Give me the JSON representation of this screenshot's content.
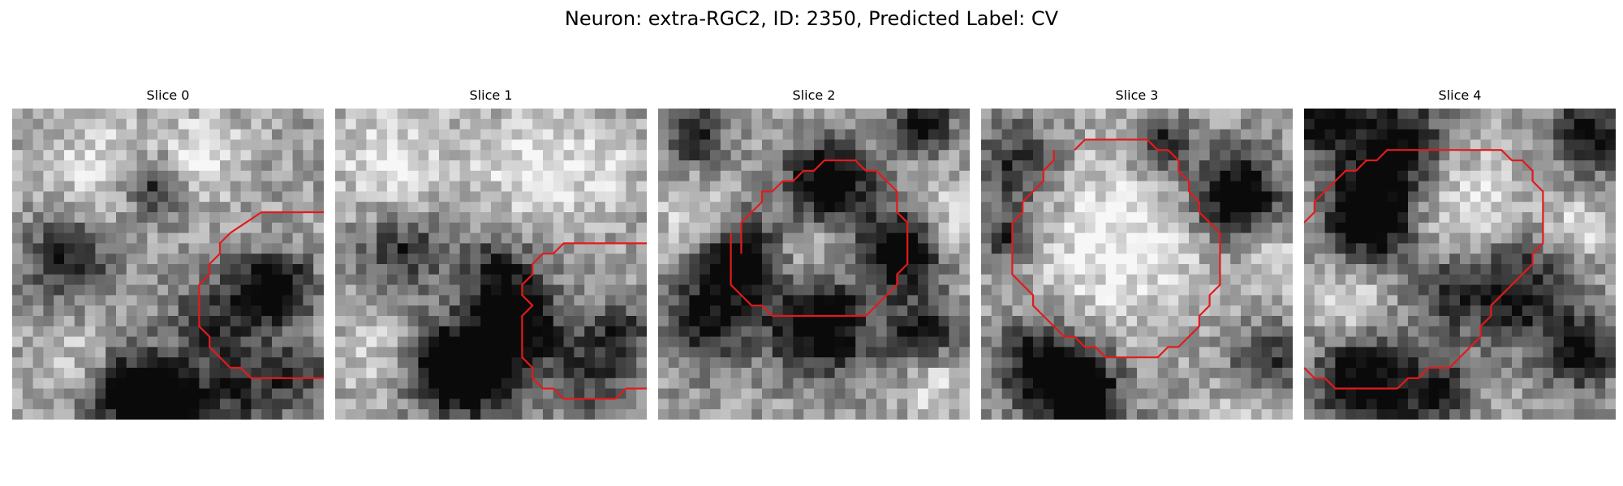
{
  "figure": {
    "title": "Neuron: extra-RGC2, ID: 2350, Predicted Label: CV"
  },
  "panels": [
    {
      "title": "Slice 0",
      "contour": [
        [
          30,
          10
        ],
        [
          24,
          10
        ],
        [
          21,
          12
        ],
        [
          20,
          13
        ],
        [
          20,
          14
        ],
        [
          19,
          15
        ],
        [
          19,
          16
        ],
        [
          18,
          17
        ],
        [
          18,
          21
        ],
        [
          19,
          22
        ],
        [
          19,
          23
        ],
        [
          21,
          25
        ],
        [
          22,
          25
        ],
        [
          23,
          26
        ],
        [
          30,
          26
        ]
      ],
      "dark_blobs": [
        [
          25,
          17,
          2.5,
          0.85
        ],
        [
          20,
          20,
          3.5,
          0.55
        ],
        [
          11,
          27,
          3,
          0.8
        ],
        [
          5,
          14,
          3,
          0.5
        ],
        [
          13,
          7,
          2,
          0.55
        ],
        [
          27,
          25,
          2.5,
          0.5
        ],
        [
          21,
          27,
          3,
          0.45
        ],
        [
          15,
          28,
          2,
          0.55
        ]
      ],
      "light_blobs": [
        [
          24,
          21,
          4.5,
          0.25
        ],
        [
          8,
          5,
          4,
          0.25
        ],
        [
          18,
          4,
          3,
          0.25
        ],
        [
          6,
          24,
          3,
          0.2
        ]
      ]
    },
    {
      "title": "Slice 1",
      "contour": [
        [
          30,
          13
        ],
        [
          22,
          13
        ],
        [
          21,
          14
        ],
        [
          20,
          14
        ],
        [
          19,
          15
        ],
        [
          19,
          16
        ],
        [
          18,
          17
        ],
        [
          18,
          18
        ],
        [
          19,
          19
        ],
        [
          18,
          20
        ],
        [
          18,
          24
        ],
        [
          19,
          25
        ],
        [
          19,
          26
        ],
        [
          20,
          27
        ],
        [
          21,
          27
        ],
        [
          22,
          28
        ],
        [
          27,
          28
        ],
        [
          28,
          27
        ],
        [
          30,
          27
        ]
      ],
      "dark_blobs": [
        [
          17,
          20,
          3,
          0.7
        ],
        [
          13,
          25,
          3,
          0.75
        ],
        [
          6,
          13,
          3,
          0.45
        ],
        [
          15,
          15,
          2.5,
          0.4
        ],
        [
          24,
          25,
          3,
          0.4
        ],
        [
          9,
          24,
          3,
          0.45
        ],
        [
          27,
          21,
          2,
          0.4
        ]
      ],
      "light_blobs": [
        [
          5,
          5,
          4,
          0.3
        ],
        [
          18,
          5,
          4,
          0.25
        ],
        [
          4,
          23,
          3,
          0.25
        ],
        [
          25,
          5,
          3,
          0.2
        ]
      ]
    },
    {
      "title": "Slice 2",
      "contour": [
        [
          8,
          14
        ],
        [
          8,
          11
        ],
        [
          9,
          10
        ],
        [
          10,
          9
        ],
        [
          10,
          8
        ],
        [
          11,
          8
        ],
        [
          12,
          7
        ],
        [
          13,
          7
        ],
        [
          14,
          6
        ],
        [
          15,
          6
        ],
        [
          16,
          5
        ],
        [
          19,
          5
        ],
        [
          20,
          6
        ],
        [
          21,
          6
        ],
        [
          22,
          7
        ],
        [
          23,
          8
        ],
        [
          23,
          10
        ],
        [
          24,
          11
        ],
        [
          24,
          15
        ],
        [
          23,
          16
        ],
        [
          23,
          17
        ],
        [
          22,
          18
        ],
        [
          21,
          19
        ],
        [
          20,
          20
        ],
        [
          11,
          20
        ],
        [
          10,
          19
        ],
        [
          9,
          19
        ],
        [
          8,
          18
        ],
        [
          7,
          17
        ],
        [
          7,
          12
        ]
      ],
      "dark_blobs": [
        [
          16,
          7,
          3,
          0.8
        ],
        [
          8,
          14,
          3,
          0.85
        ],
        [
          23,
          13,
          2.5,
          0.85
        ],
        [
          15,
          20,
          3.5,
          0.8
        ],
        [
          4,
          20,
          3,
          0.55
        ],
        [
          25,
          1,
          2,
          0.6
        ],
        [
          3,
          2,
          2,
          0.55
        ],
        [
          25,
          21,
          2.5,
          0.5
        ]
      ],
      "light_blobs": [
        [
          13,
          14,
          3.5,
          0.4
        ],
        [
          3,
          10,
          2.5,
          0.25
        ],
        [
          27,
          10,
          2.5,
          0.25
        ],
        [
          26,
          26,
          2,
          0.3
        ]
      ]
    },
    {
      "title": "Slice 3",
      "contour": [
        [
          9,
          4
        ],
        [
          10,
          3
        ],
        [
          16,
          3
        ],
        [
          17,
          4
        ],
        [
          18,
          4
        ],
        [
          19,
          5
        ],
        [
          19,
          6
        ],
        [
          20,
          7
        ],
        [
          20,
          8
        ],
        [
          21,
          9
        ],
        [
          21,
          10
        ],
        [
          22,
          11
        ],
        [
          23,
          12
        ],
        [
          23,
          17
        ],
        [
          22,
          18
        ],
        [
          22,
          19
        ],
        [
          21,
          20
        ],
        [
          21,
          21
        ],
        [
          20,
          22
        ],
        [
          19,
          23
        ],
        [
          18,
          23
        ],
        [
          17,
          24
        ],
        [
          12,
          24
        ],
        [
          11,
          23
        ],
        [
          10,
          23
        ],
        [
          9,
          22
        ],
        [
          8,
          22
        ],
        [
          7,
          21
        ],
        [
          6,
          20
        ],
        [
          5,
          19
        ],
        [
          5,
          18
        ],
        [
          4,
          17
        ],
        [
          3,
          16
        ],
        [
          3,
          11
        ],
        [
          4,
          10
        ],
        [
          4,
          9
        ],
        [
          5,
          8
        ],
        [
          6,
          7
        ],
        [
          6,
          6
        ],
        [
          7,
          5
        ],
        [
          7,
          4
        ]
      ],
      "dark_blobs": [
        [
          24,
          8,
          3,
          0.8
        ],
        [
          5,
          24,
          3,
          0.55
        ],
        [
          9,
          27,
          3,
          0.75
        ],
        [
          3,
          5,
          3,
          0.45
        ],
        [
          17,
          3,
          2,
          0.6
        ],
        [
          27,
          24,
          2.5,
          0.45
        ],
        [
          2,
          12,
          2,
          0.45
        ]
      ],
      "light_blobs": [
        [
          13,
          12,
          6,
          0.35
        ],
        [
          25,
          28,
          2,
          0.2
        ],
        [
          28,
          14,
          2,
          0.25
        ]
      ]
    },
    {
      "title": "Slice 4",
      "contour": [
        [
          0,
          11
        ],
        [
          1,
          10
        ],
        [
          1,
          9
        ],
        [
          2,
          8
        ],
        [
          3,
          7
        ],
        [
          4,
          6
        ],
        [
          5,
          6
        ],
        [
          6,
          5
        ],
        [
          7,
          5
        ],
        [
          8,
          4
        ],
        [
          9,
          4
        ],
        [
          10,
          4
        ],
        [
          11,
          4
        ],
        [
          19,
          4
        ],
        [
          20,
          5
        ],
        [
          21,
          5
        ],
        [
          22,
          6
        ],
        [
          22,
          7
        ],
        [
          23,
          8
        ],
        [
          23,
          13
        ],
        [
          22,
          14
        ],
        [
          22,
          15
        ],
        [
          21,
          16
        ],
        [
          20,
          17
        ],
        [
          19,
          18
        ],
        [
          18,
          19
        ],
        [
          18,
          20
        ],
        [
          17,
          21
        ],
        [
          17,
          22
        ],
        [
          16,
          23
        ],
        [
          15,
          24
        ],
        [
          14,
          25
        ],
        [
          12,
          25
        ],
        [
          11,
          26
        ],
        [
          10,
          26
        ],
        [
          9,
          27
        ],
        [
          3,
          27
        ],
        [
          2,
          26
        ],
        [
          1,
          26
        ],
        [
          0,
          25
        ]
      ],
      "dark_blobs": [
        [
          6,
          10,
          3,
          0.9
        ],
        [
          8,
          3,
          3.5,
          0.75
        ],
        [
          20,
          17,
          3.5,
          0.6
        ],
        [
          5,
          26,
          3,
          0.75
        ],
        [
          27,
          2,
          2.5,
          0.65
        ],
        [
          13,
          17,
          3,
          0.45
        ],
        [
          26,
          23,
          2.5,
          0.55
        ],
        [
          1,
          1,
          2,
          0.6
        ],
        [
          12,
          27,
          2.5,
          0.55
        ]
      ],
      "light_blobs": [
        [
          14,
          10,
          5,
          0.3
        ],
        [
          26,
          11,
          2,
          0.25
        ],
        [
          4,
          18,
          2.5,
          0.25
        ]
      ]
    }
  ]
}
